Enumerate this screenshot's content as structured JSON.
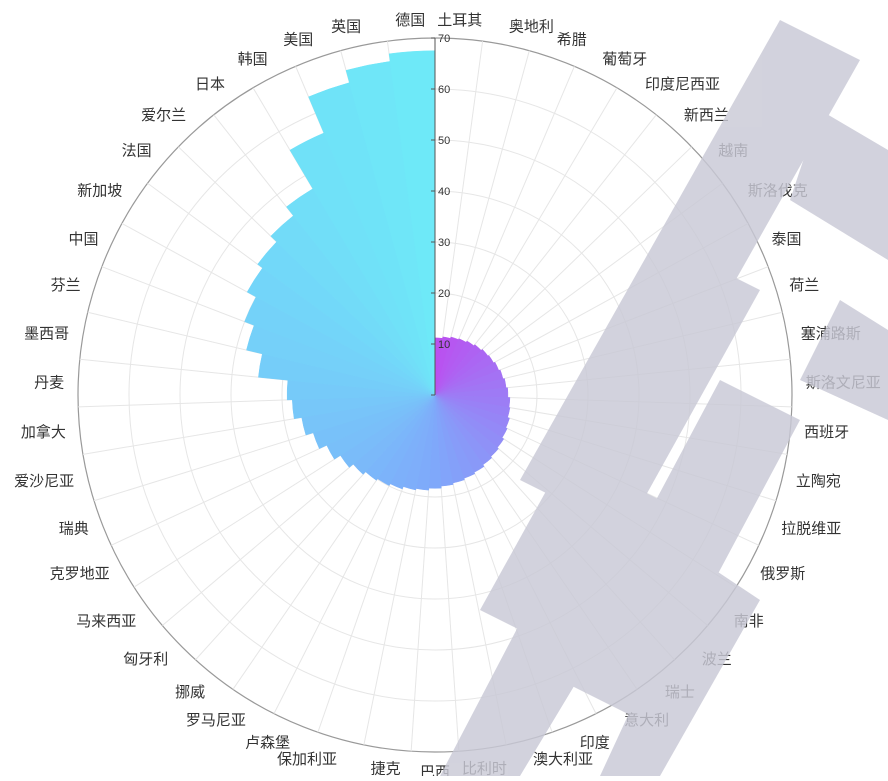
{
  "chart_data": {
    "type": "bar",
    "polar": true,
    "title": "",
    "xlabel": "",
    "ylabel": "",
    "ylim": [
      0,
      70
    ],
    "radial_ticks": [
      "0",
      "10",
      "20",
      "30",
      "40",
      "50",
      "60",
      "70"
    ],
    "grid": true,
    "legend": "none",
    "categories": [
      "土耳其",
      "奥地利",
      "希腊",
      "葡萄牙",
      "印度尼西亚",
      "新西兰",
      "越南",
      "斯洛伐克",
      "泰国",
      "荷兰",
      "塞浦路斯",
      "斯洛文尼亚",
      "西班牙",
      "立陶宛",
      "拉脱维亚",
      "俄罗斯",
      "南非",
      "波兰",
      "瑞士",
      "意大利",
      "印度",
      "澳大利亚",
      "比利时",
      "巴西",
      "捷克",
      "保加利亚",
      "卢森堡",
      "罗马尼亚",
      "挪威",
      "匈牙利",
      "马来西亚",
      "克罗地亚",
      "瑞典",
      "爱沙尼亚",
      "加拿大",
      "丹麦",
      "墨西哥",
      "芬兰",
      "中国",
      "新加坡",
      "法国",
      "爱尔兰",
      "日本",
      "韩国",
      "美国",
      "英国",
      "德国"
    ],
    "values": [
      11.2,
      11.5,
      11.8,
      12.0,
      12.3,
      12.6,
      12.9,
      13.1,
      13.4,
      13.7,
      14.0,
      14.3,
      14.7,
      14.9,
      15.3,
      15.6,
      16.0,
      16.3,
      16.6,
      17.0,
      17.3,
      17.6,
      17.9,
      18.3,
      18.7,
      19.0,
      19.5,
      19.9,
      20.3,
      21.0,
      22.0,
      23.4,
      25.0,
      26.5,
      28.0,
      29.0,
      34.8,
      38.0,
      40.0,
      42.0,
      43.2,
      44.8,
      47.0,
      55.8,
      63.5,
      66.0,
      67.5
    ],
    "colors": {
      "gradient_start": "#bb4ff0",
      "gradient_mid": "#7fa8fa",
      "gradient_end": "#6ee9f8",
      "grid": "#e6e6e6",
      "outer_ring": "#999999",
      "label": "#333333",
      "watermark": "#c9c9d6"
    }
  }
}
